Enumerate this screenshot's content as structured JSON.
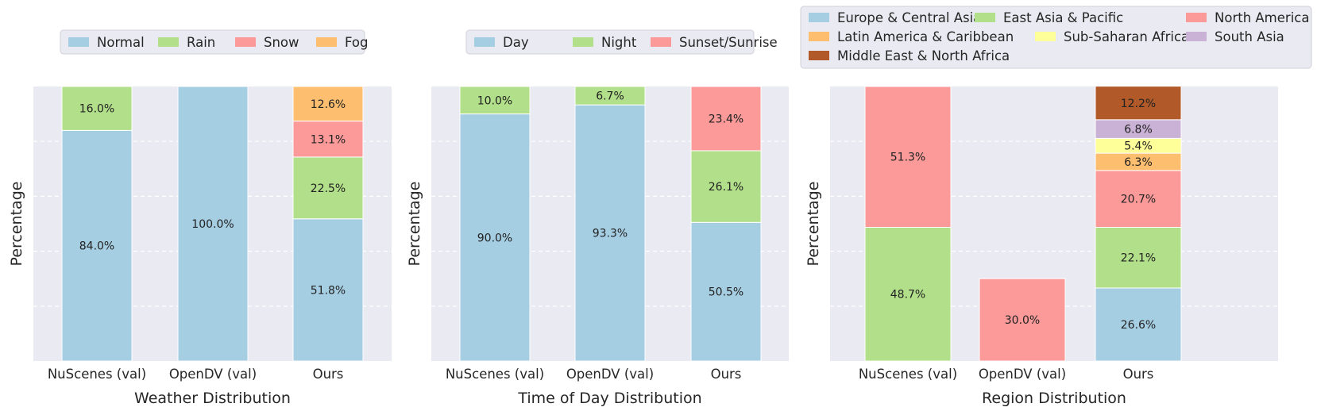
{
  "chart_data": [
    {
      "type": "bar",
      "stacked": true,
      "xlabel": "Weather Distribution",
      "ylabel": "Percentage",
      "ylim": [
        0,
        100
      ],
      "grid": true,
      "legend": "top-center",
      "categories": [
        "NuScenes (val)",
        "OpenDV (val)",
        "Ours"
      ],
      "series": [
        {
          "name": "Normal",
          "color": "#a6cee3",
          "values": [
            84.0,
            100.0,
            51.8
          ]
        },
        {
          "name": "Rain",
          "color": "#b2df8a",
          "values": [
            16.0,
            0,
            22.5
          ]
        },
        {
          "name": "Snow",
          "color": "#fb9a99",
          "values": [
            0,
            0,
            13.1
          ]
        },
        {
          "name": "Fog",
          "color": "#fdbf6f",
          "values": [
            0,
            0,
            12.6
          ]
        }
      ]
    },
    {
      "type": "bar",
      "stacked": true,
      "xlabel": "Time of Day Distribution",
      "ylabel": "Percentage",
      "ylim": [
        0,
        100
      ],
      "grid": true,
      "legend": "top-center",
      "categories": [
        "NuScenes (val)",
        "OpenDV (val)",
        "Ours"
      ],
      "series": [
        {
          "name": "Day",
          "color": "#a6cee3",
          "values": [
            90.0,
            93.3,
            50.5
          ]
        },
        {
          "name": "Night",
          "color": "#b2df8a",
          "values": [
            10.0,
            6.7,
            26.1
          ]
        },
        {
          "name": "Sunset/Sunrise",
          "color": "#fb9a99",
          "values": [
            0,
            0,
            23.4
          ]
        }
      ]
    },
    {
      "type": "bar",
      "stacked": true,
      "xlabel": "Region Distribution",
      "ylabel": "Percentage",
      "ylim": [
        0,
        100
      ],
      "grid": true,
      "legend": "top-center",
      "categories": [
        "NuScenes (val)",
        "OpenDV (val)",
        "Ours"
      ],
      "series": [
        {
          "name": "Europe & Central Asia",
          "color": "#a6cee3",
          "values": [
            0,
            0,
            26.6
          ]
        },
        {
          "name": "East Asia & Pacific",
          "color": "#b2df8a",
          "values": [
            48.7,
            0,
            22.1
          ]
        },
        {
          "name": "North America",
          "color": "#fb9a99",
          "values": [
            51.3,
            30.0,
            20.7
          ]
        },
        {
          "name": "Latin America & Caribbean",
          "color": "#fdbf6f",
          "values": [
            0,
            0,
            6.3
          ]
        },
        {
          "name": "Sub-Saharan Africa",
          "color": "#ffff99",
          "values": [
            0,
            0,
            5.4
          ]
        },
        {
          "name": "South Asia",
          "color": "#cab2d6",
          "values": [
            0,
            0,
            6.8
          ]
        },
        {
          "name": "Middle East & North Africa",
          "color": "#b15928",
          "values": [
            0,
            0,
            12.2
          ]
        }
      ]
    }
  ]
}
